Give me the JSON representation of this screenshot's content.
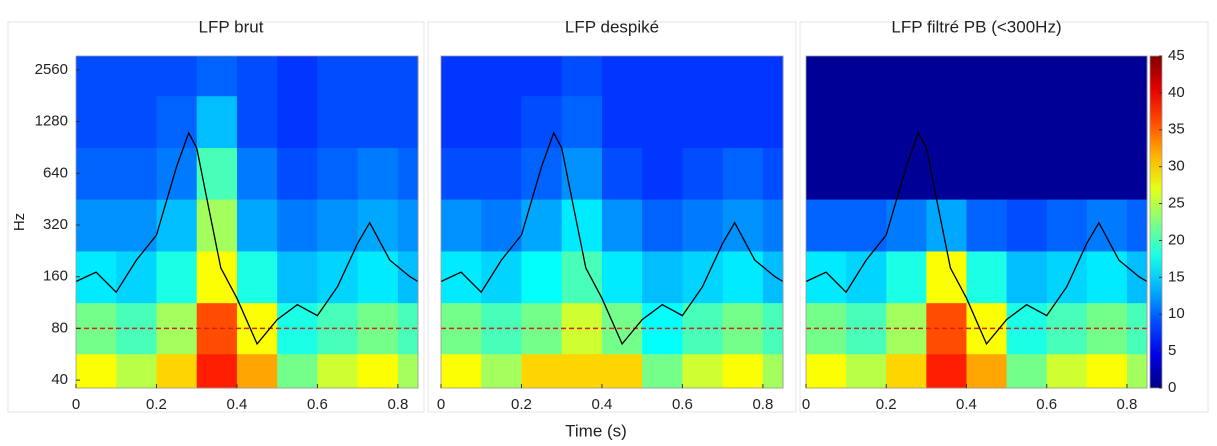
{
  "chart_data": [
    {
      "type": "heatmap",
      "title": "LFP brut",
      "ylabel": "Hz",
      "yscale": "log",
      "colormap": "jet",
      "x_bins": [
        0,
        0.1,
        0.2,
        0.3,
        0.4,
        0.5,
        0.6,
        0.7,
        0.8,
        0.85
      ],
      "y_bins": [
        36,
        57,
        113,
        226,
        453,
        905,
        1810,
        3083
      ],
      "z": [
        [
          28,
          25,
          30,
          38,
          32,
          22,
          26,
          28,
          24
        ],
        [
          22,
          20,
          24,
          36,
          28,
          18,
          20,
          22,
          20
        ],
        [
          16,
          15,
          18,
          28,
          18,
          14,
          15,
          16,
          14
        ],
        [
          12,
          12,
          14,
          24,
          13,
          11,
          12,
          13,
          12
        ],
        [
          10,
          10,
          11,
          20,
          11,
          9,
          10,
          11,
          10
        ],
        [
          9,
          9,
          10,
          14,
          9,
          8,
          9,
          9,
          9
        ],
        [
          9,
          9,
          9,
          10,
          9,
          8,
          9,
          9,
          9
        ]
      ],
      "xlim": [
        0,
        0.85
      ],
      "xticks": [
        0,
        0.2,
        0.4,
        0.6,
        0.8
      ],
      "ylim": [
        36,
        3083
      ],
      "yticks": [
        40,
        80,
        160,
        320,
        640,
        1280,
        2560
      ],
      "hline": 80,
      "hline_color": "#d62020",
      "trace": {
        "color": "#000000",
        "x": [
          0,
          0.05,
          0.1,
          0.15,
          0.2,
          0.25,
          0.28,
          0.3,
          0.33,
          0.36,
          0.4,
          0.45,
          0.5,
          0.55,
          0.6,
          0.65,
          0.7,
          0.73,
          0.78,
          0.83,
          0.85
        ],
        "y": [
          150,
          170,
          130,
          200,
          280,
          700,
          1100,
          900,
          400,
          180,
          120,
          65,
          90,
          110,
          95,
          140,
          250,
          330,
          200,
          160,
          150
        ]
      }
    },
    {
      "type": "heatmap",
      "title": "LFP despiké",
      "xlabel": "Time (s)",
      "yscale": "log",
      "colormap": "jet",
      "x_bins": [
        0,
        0.1,
        0.2,
        0.3,
        0.4,
        0.5,
        0.6,
        0.7,
        0.8,
        0.85
      ],
      "y_bins": [
        36,
        57,
        113,
        226,
        453,
        905,
        1810,
        3083
      ],
      "z": [
        [
          28,
          24,
          30,
          30,
          30,
          22,
          26,
          28,
          24
        ],
        [
          22,
          20,
          22,
          26,
          22,
          17,
          20,
          22,
          20
        ],
        [
          16,
          15,
          17,
          20,
          16,
          14,
          15,
          16,
          14
        ],
        [
          12,
          11,
          13,
          16,
          12,
          10,
          11,
          12,
          11
        ],
        [
          9,
          9,
          10,
          12,
          9,
          8,
          9,
          10,
          9
        ],
        [
          8,
          8,
          9,
          10,
          8,
          8,
          8,
          8,
          8
        ],
        [
          8,
          8,
          8,
          9,
          8,
          8,
          8,
          8,
          8
        ]
      ],
      "xlim": [
        0,
        0.85
      ],
      "xticks": [
        0,
        0.2,
        0.4,
        0.6,
        0.8
      ],
      "ylim": [
        36,
        3083
      ],
      "hline": 80,
      "hline_color": "#d62020",
      "trace": {
        "color": "#000000",
        "x": [
          0,
          0.05,
          0.1,
          0.15,
          0.2,
          0.25,
          0.28,
          0.3,
          0.33,
          0.36,
          0.4,
          0.45,
          0.5,
          0.55,
          0.6,
          0.65,
          0.7,
          0.73,
          0.78,
          0.83,
          0.85
        ],
        "y": [
          150,
          170,
          130,
          200,
          280,
          700,
          1100,
          900,
          400,
          180,
          120,
          65,
          90,
          110,
          95,
          140,
          250,
          330,
          200,
          160,
          150
        ]
      }
    },
    {
      "type": "heatmap",
      "title": "LFP filtré PB (<300Hz)",
      "yscale": "log",
      "colormap": "jet",
      "x_bins": [
        0,
        0.1,
        0.2,
        0.3,
        0.4,
        0.5,
        0.6,
        0.7,
        0.8,
        0.85
      ],
      "y_bins": [
        36,
        57,
        113,
        226,
        453,
        905,
        1810,
        3083
      ],
      "z": [
        [
          28,
          25,
          30,
          38,
          32,
          22,
          26,
          28,
          24
        ],
        [
          22,
          20,
          24,
          36,
          28,
          18,
          20,
          22,
          20
        ],
        [
          16,
          15,
          18,
          28,
          18,
          14,
          15,
          16,
          14
        ],
        [
          10,
          10,
          11,
          13,
          10,
          9,
          10,
          11,
          10
        ],
        [
          1,
          1,
          1,
          1,
          1,
          1,
          1,
          1,
          1
        ],
        [
          1,
          1,
          1,
          1,
          1,
          1,
          1,
          1,
          1
        ],
        [
          1,
          1,
          1,
          1,
          1,
          1,
          1,
          1,
          1
        ]
      ],
      "xlim": [
        0,
        0.85
      ],
      "xticks": [
        0,
        0.2,
        0.4,
        0.6,
        0.8
      ],
      "ylim": [
        36,
        3083
      ],
      "hline": 80,
      "hline_color": "#d62020",
      "clim": [
        0,
        45
      ],
      "cticks": [
        0,
        5,
        10,
        15,
        20,
        25,
        30,
        35,
        40,
        45
      ],
      "trace": {
        "color": "#000000",
        "x": [
          0,
          0.05,
          0.1,
          0.15,
          0.2,
          0.25,
          0.28,
          0.3,
          0.33,
          0.36,
          0.4,
          0.45,
          0.5,
          0.55,
          0.6,
          0.65,
          0.7,
          0.73,
          0.78,
          0.83,
          0.85
        ],
        "y": [
          150,
          170,
          130,
          200,
          280,
          700,
          1100,
          900,
          400,
          180,
          120,
          65,
          90,
          110,
          95,
          140,
          250,
          330,
          200,
          160,
          150
        ]
      }
    }
  ]
}
